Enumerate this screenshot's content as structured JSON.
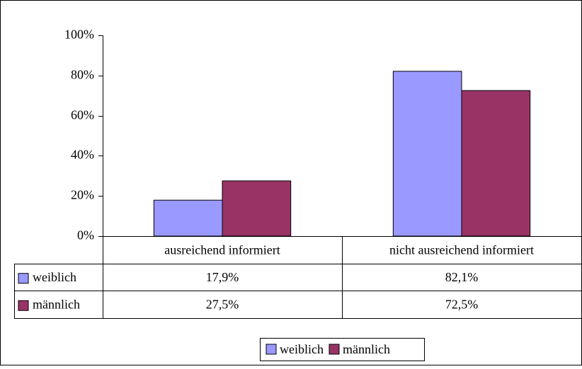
{
  "chart_data": {
    "type": "bar",
    "categories": [
      "ausreichend informiert",
      "nicht ausreichend informiert"
    ],
    "series": [
      {
        "name": "weiblich",
        "color": "#9999ff",
        "values": [
          17.9,
          82.1
        ],
        "value_labels": [
          "17,9%",
          "82,1%"
        ]
      },
      {
        "name": "männlich",
        "color": "#993366",
        "values": [
          27.5,
          72.5
        ],
        "value_labels": [
          "27,5%",
          "72,5%"
        ]
      }
    ],
    "ylim": [
      0,
      100
    ],
    "yticks": [
      {
        "value": 0,
        "label": "0%"
      },
      {
        "value": 20,
        "label": "20%"
      },
      {
        "value": 40,
        "label": "40%"
      },
      {
        "value": 60,
        "label": "60%"
      },
      {
        "value": 80,
        "label": "80%"
      },
      {
        "value": 100,
        "label": "100%"
      }
    ],
    "grid": false,
    "legend": "bottom"
  }
}
